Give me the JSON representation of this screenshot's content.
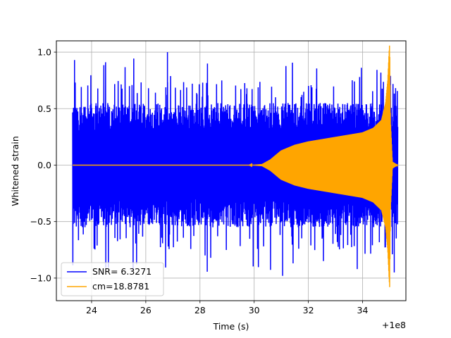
{
  "chart_data": {
    "type": "line",
    "title": "",
    "xlabel": "Time (s)",
    "ylabel": "Whitened strain",
    "x_offset_label": "+1e8",
    "xlim": [
      22.7,
      35.6
    ],
    "ylim": [
      -1.2,
      1.1
    ],
    "xticks": [
      24,
      26,
      28,
      30,
      32,
      34
    ],
    "xtick_labels": [
      "24",
      "26",
      "28",
      "30",
      "32",
      "34"
    ],
    "yticks": [
      -1.0,
      -0.5,
      0.0,
      0.5,
      1.0
    ],
    "ytick_labels": [
      "−1.0",
      "−0.5",
      "0.0",
      "0.5",
      "1.0"
    ],
    "grid": true,
    "legend_position": "lower-left",
    "series": [
      {
        "name": "SNR= 6.3271",
        "color": "#0000ff",
        "kind": "noise",
        "x_start": 23.3,
        "x_end": 35.3,
        "typical_amplitude": 0.55,
        "max": 1.0,
        "min": -0.98,
        "peaks": [
          {
            "x": 23.37,
            "y": 0.93
          },
          {
            "x": 26.8,
            "y": 1.0
          },
          {
            "x": 31.05,
            "y": -0.98
          },
          {
            "x": 35.17,
            "y": -0.95
          },
          {
            "x": 35.25,
            "y": -0.28
          }
        ]
      },
      {
        "name": "cm=18.8781",
        "color": "#ffa500",
        "kind": "chirp",
        "x_start": 23.3,
        "x_end": 35.3,
        "envelope": [
          [
            23.3,
            0.0
          ],
          [
            29.8,
            0.0
          ],
          [
            30.3,
            0.01
          ],
          [
            30.6,
            0.05
          ],
          [
            31.0,
            0.13
          ],
          [
            31.5,
            0.18
          ],
          [
            32.0,
            0.21
          ],
          [
            32.5,
            0.23
          ],
          [
            33.0,
            0.25
          ],
          [
            33.5,
            0.27
          ],
          [
            34.0,
            0.29
          ],
          [
            34.4,
            0.33
          ],
          [
            34.7,
            0.4
          ],
          [
            34.85,
            0.55
          ],
          [
            34.93,
            0.75
          ],
          [
            34.98,
            1.0
          ],
          [
            35.0,
            1.08
          ],
          [
            35.03,
            0.4
          ],
          [
            35.1,
            0.03
          ],
          [
            35.3,
            0.0
          ]
        ]
      }
    ]
  }
}
